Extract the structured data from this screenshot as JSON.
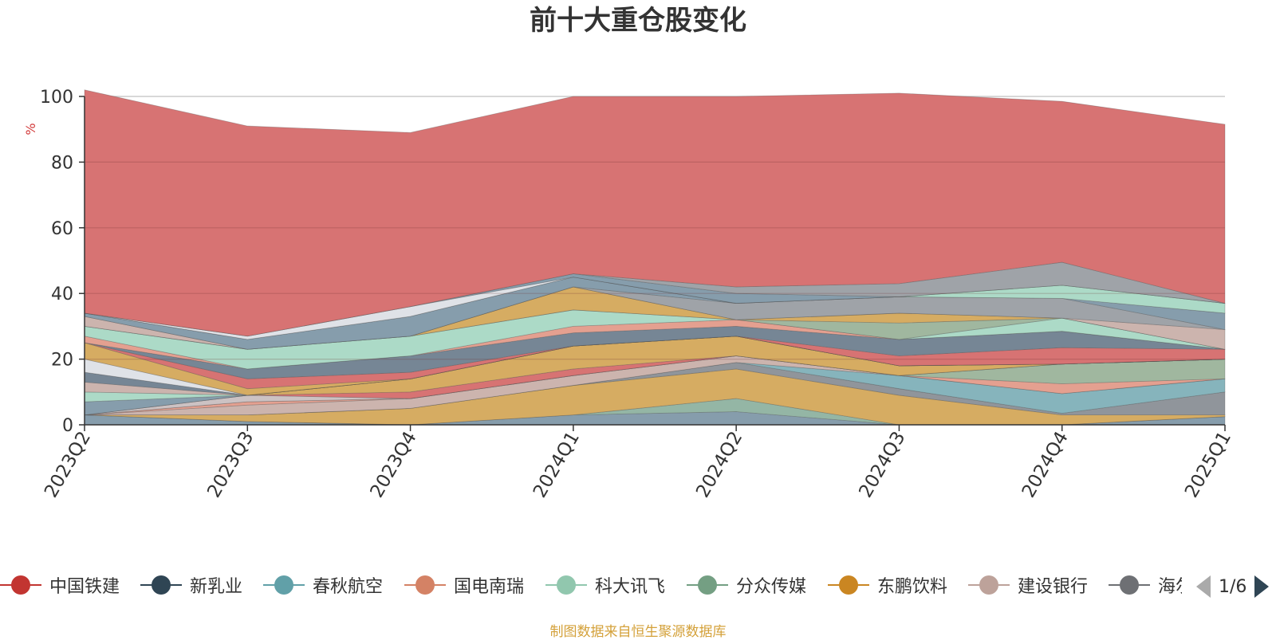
{
  "chart_data": {
    "type": "area",
    "title": "前十大重仓股变化",
    "ylabel": "%",
    "ylim": [
      0,
      100
    ],
    "yticks": [
      0,
      20,
      40,
      60,
      80,
      100
    ],
    "categories": [
      "2023Q2",
      "2023Q3",
      "2023Q4",
      "2024Q1",
      "2024Q2",
      "2024Q3",
      "2024Q4",
      "2025Q1"
    ],
    "grid": true,
    "stacked": true,
    "series": [
      {
        "name": "",
        "color": "#7f98a8",
        "values": [
          3,
          1,
          0,
          3,
          4,
          0,
          0,
          2.5
        ]
      },
      {
        "name": "",
        "color": "#8eb2a0",
        "values": [
          0,
          0,
          0,
          0,
          4,
          0,
          0,
          0
        ]
      },
      {
        "name": "",
        "color": "#d4a85a",
        "values": [
          0,
          2,
          5,
          9,
          9,
          9,
          3,
          0.5
        ]
      },
      {
        "name": "",
        "color": "#8a8f96",
        "values": [
          0,
          0,
          0,
          0,
          2,
          2,
          0.5,
          7
        ]
      },
      {
        "name": "",
        "color": "#7fb0b8",
        "values": [
          0,
          0,
          0,
          0,
          0,
          4,
          6,
          4
        ]
      },
      {
        "name": "",
        "color": "#c9b0aa",
        "values": [
          0,
          3,
          3,
          3,
          2,
          0,
          0,
          0
        ]
      },
      {
        "name": "",
        "color": "#e39b8a",
        "values": [
          0,
          1,
          0,
          0,
          0,
          0,
          3,
          0
        ]
      },
      {
        "name": "",
        "color": "#9bb39a",
        "values": [
          0,
          0,
          0,
          0,
          0,
          0,
          6,
          6
        ]
      },
      {
        "name": "",
        "color": "#c9bfc0",
        "values": [
          0,
          2,
          0,
          0,
          0,
          0,
          0,
          0
        ]
      },
      {
        "name": "",
        "color": "#d56b6b",
        "values": [
          0,
          0,
          2,
          2,
          0,
          0,
          0,
          0
        ]
      },
      {
        "name": "",
        "color": "#d4a85a",
        "values": [
          0,
          0,
          4,
          7,
          6,
          3,
          0,
          0
        ]
      },
      {
        "name": "",
        "color": "#7f98a8",
        "values": [
          4,
          0,
          0,
          0,
          0,
          0,
          0,
          0
        ]
      },
      {
        "name": "",
        "color": "#a8d8c4",
        "values": [
          3,
          0,
          0,
          0,
          0,
          0,
          0,
          0
        ]
      },
      {
        "name": "",
        "color": "#c9b0aa",
        "values": [
          3,
          0,
          0,
          0,
          0,
          0,
          0,
          0
        ]
      },
      {
        "name": "",
        "color": "#6f808f",
        "values": [
          3,
          0,
          0,
          0,
          0,
          0,
          0,
          0
        ]
      },
      {
        "name": "",
        "color": "#dde0e6",
        "values": [
          4,
          0,
          0,
          0,
          0,
          0,
          0,
          0
        ]
      },
      {
        "name": "",
        "color": "#d4a85a",
        "values": [
          5,
          2,
          0,
          0,
          0,
          0,
          0,
          0
        ]
      },
      {
        "name": "",
        "color": "#d56b6b",
        "values": [
          0,
          3,
          2,
          0,
          0,
          3,
          5,
          3
        ]
      },
      {
        "name": "",
        "color": "#6f808f",
        "values": [
          0,
          3,
          5,
          4,
          3,
          5,
          5,
          0
        ]
      },
      {
        "name": "",
        "color": "#e39b8a",
        "values": [
          2,
          0,
          0,
          2,
          2,
          0,
          0,
          0
        ]
      },
      {
        "name": "",
        "color": "#a8d8c4",
        "values": [
          3,
          6,
          6,
          5,
          0,
          0,
          4,
          0
        ]
      },
      {
        "name": "",
        "color": "#9bb39a",
        "values": [
          0,
          0,
          0,
          0,
          0,
          5,
          0,
          0
        ]
      },
      {
        "name": "",
        "color": "#d4a85a",
        "values": [
          0,
          0,
          0,
          7,
          0,
          3,
          0,
          0
        ]
      },
      {
        "name": "",
        "color": "#c9b0aa",
        "values": [
          3,
          0,
          0,
          0,
          0,
          0,
          0,
          6
        ]
      },
      {
        "name": "",
        "color": "#9a9ea3",
        "values": [
          0,
          0,
          0,
          0,
          5,
          5,
          6,
          0
        ]
      },
      {
        "name": "",
        "color": "#7f98a8",
        "values": [
          1,
          3,
          6,
          3,
          0,
          0,
          0,
          5
        ]
      },
      {
        "name": "",
        "color": "#a8d8c4",
        "values": [
          0,
          0,
          0,
          0,
          0,
          0,
          4,
          3
        ]
      },
      {
        "name": "",
        "color": "#dde0e6",
        "values": [
          0,
          1,
          3,
          0,
          0,
          0,
          0,
          0
        ]
      },
      {
        "name": "",
        "color": "#7f98a8",
        "values": [
          0,
          0,
          0,
          1,
          3,
          0,
          0,
          0
        ]
      },
      {
        "name": "",
        "color": "#9a9ea3",
        "values": [
          0,
          0,
          0,
          0,
          2,
          4,
          7,
          0
        ]
      },
      {
        "name": "",
        "color": "#d56b6b",
        "values": [
          68,
          64,
          53,
          54,
          58,
          58,
          49,
          54.5
        ]
      }
    ]
  },
  "legend": {
    "items": [
      {
        "name": "中国铁建",
        "color": "#c23531",
        "icon": "circle-marker-icon"
      },
      {
        "name": "新乳业",
        "color": "#2f4554",
        "icon": "circle-marker-icon"
      },
      {
        "name": "春秋航空",
        "color": "#61a0a8",
        "icon": "circle-marker-icon"
      },
      {
        "name": "国电南瑞",
        "color": "#d48265",
        "icon": "circle-marker-icon"
      },
      {
        "name": "科大讯飞",
        "color": "#91c7ae",
        "icon": "circle-marker-icon"
      },
      {
        "name": "分众传媒",
        "color": "#749f83",
        "icon": "circle-marker-icon"
      },
      {
        "name": "东鹏饮料",
        "color": "#ca8622",
        "icon": "circle-marker-icon"
      },
      {
        "name": "建设银行",
        "color": "#bda29a",
        "icon": "circle-marker-icon"
      },
      {
        "name": "海尔",
        "color": "#6e7074",
        "icon": "circle-marker-icon"
      }
    ],
    "page": "1/6",
    "prev_icon": "triangle-left-icon",
    "next_icon": "triangle-right-icon"
  },
  "source": "制图数据来自恒生聚源数据库"
}
